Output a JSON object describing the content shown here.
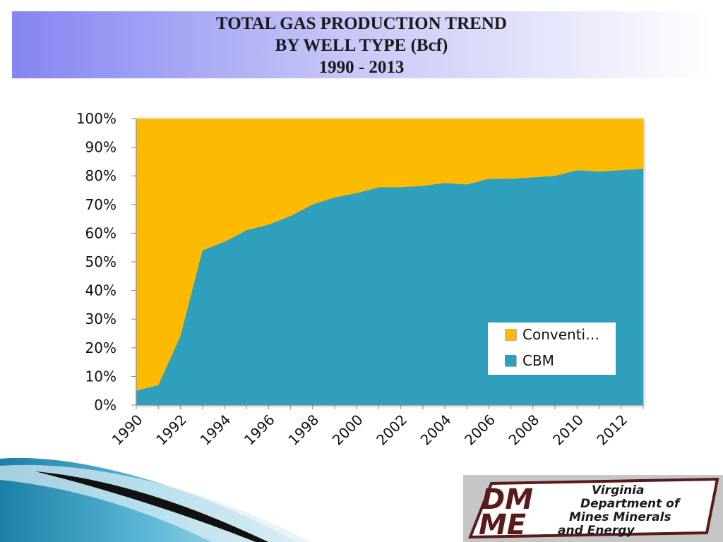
{
  "slide": {
    "title_lines": [
      "TOTAL GAS PRODUCTION TREND",
      "BY WELL TYPE (Bcf)",
      "1990 - 2013"
    ]
  },
  "logo": {
    "lines": [
      "Virginia",
      "Department of",
      "Mines Minerals",
      "and Energy"
    ]
  },
  "chart_data": {
    "type": "area",
    "stacked": "percent",
    "x": [
      1990,
      1991,
      1992,
      1993,
      1994,
      1995,
      1996,
      1997,
      1998,
      1999,
      2000,
      2001,
      2002,
      2003,
      2004,
      2005,
      2006,
      2007,
      2008,
      2009,
      2010,
      2011,
      2012,
      2013
    ],
    "series": [
      {
        "name": "CBM",
        "color": "#2da0be",
        "values": [
          5,
          7,
          24,
          54,
          57,
          61,
          63,
          66,
          70,
          72.5,
          74,
          76,
          76,
          76.5,
          77.5,
          77,
          79,
          79,
          79.5,
          80,
          82,
          81.5,
          82,
          82.5
        ]
      },
      {
        "name": "Conventi…",
        "color": "#fcbb00",
        "values": [
          95,
          93,
          76,
          46,
          43,
          39,
          37,
          34,
          30,
          27.5,
          26,
          24,
          24,
          23.5,
          22.5,
          23,
          21,
          21,
          20.5,
          20,
          18,
          18.5,
          18,
          17.5
        ]
      }
    ],
    "ylim": [
      0,
      100
    ],
    "y_ticks": [
      "0%",
      "10%",
      "20%",
      "30%",
      "40%",
      "50%",
      "60%",
      "70%",
      "80%",
      "90%",
      "100%"
    ],
    "x_tick_labels": [
      "1990",
      "1992",
      "1994",
      "1996",
      "1998",
      "2000",
      "2002",
      "2004",
      "2006",
      "2008",
      "2010",
      "2012"
    ],
    "legend": {
      "position": "bottom-right",
      "order": [
        "Conventi…",
        "CBM"
      ]
    },
    "grid": false
  }
}
